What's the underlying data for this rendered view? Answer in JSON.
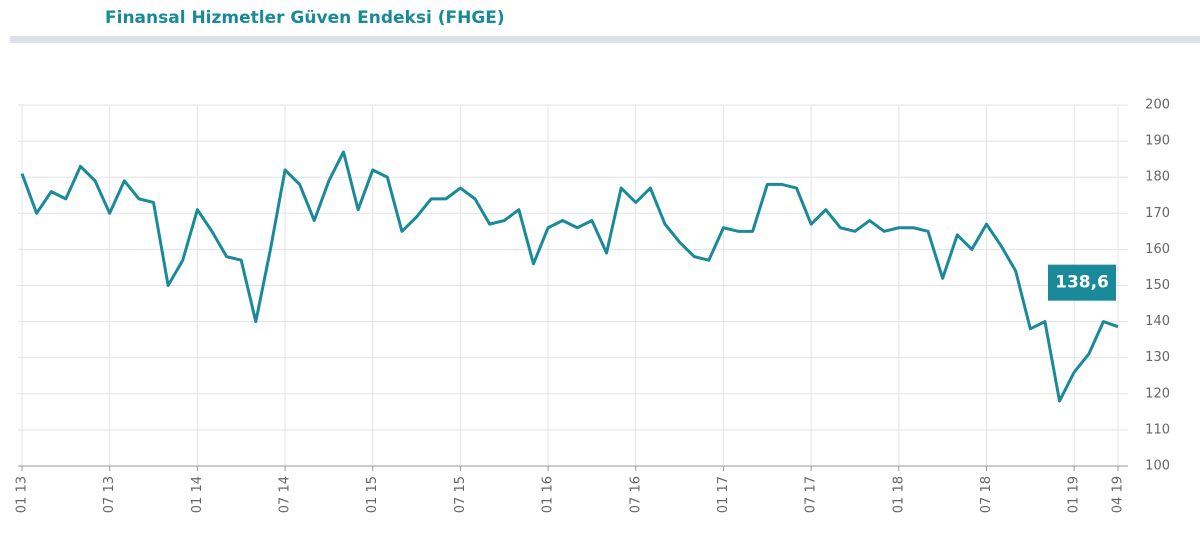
{
  "chart_data": {
    "type": "line",
    "title": "Finansal Hizmetler Güven Endeksi (FHGE)",
    "categories": [
      "01 13",
      null,
      null,
      null,
      null,
      null,
      "07 13",
      null,
      null,
      null,
      null,
      null,
      "01 14",
      null,
      null,
      null,
      null,
      null,
      "07 14",
      null,
      null,
      null,
      null,
      null,
      "01 15",
      null,
      null,
      null,
      null,
      null,
      "07 15",
      null,
      null,
      null,
      null,
      null,
      "01 16",
      null,
      null,
      null,
      null,
      null,
      "07 16",
      null,
      null,
      null,
      null,
      null,
      "01 17",
      null,
      null,
      null,
      null,
      null,
      "07 17",
      null,
      null,
      null,
      null,
      null,
      "01 18",
      null,
      null,
      null,
      null,
      null,
      "07 18",
      null,
      null,
      null,
      null,
      null,
      "01 19",
      null,
      null,
      "04 19"
    ],
    "series": [
      {
        "color": "#1a8a9a",
        "values": [
          181,
          170,
          176,
          174,
          183,
          179,
          170,
          179,
          174,
          173,
          150,
          157,
          171,
          165,
          158,
          157,
          140,
          160,
          182,
          178,
          168,
          179,
          187,
          171,
          182,
          180,
          165,
          169,
          174,
          174,
          177,
          174,
          167,
          168,
          171,
          156,
          166,
          168,
          166,
          168,
          159,
          177,
          173,
          177,
          167,
          162,
          158,
          157,
          166,
          165,
          165,
          178,
          178,
          177,
          167,
          171,
          166,
          165,
          168,
          165,
          166,
          166,
          165,
          152,
          164,
          160,
          167,
          161,
          154,
          138,
          140,
          118,
          126,
          131,
          140,
          138.6
        ],
        "value_labels": [
          null,
          null,
          null,
          null,
          null,
          null,
          null,
          null,
          null,
          null,
          null,
          null,
          null,
          null,
          null,
          null,
          null,
          null,
          null,
          null,
          null,
          null,
          null,
          null,
          null,
          null,
          null,
          null,
          null,
          null,
          null,
          null,
          null,
          null,
          null,
          null,
          null,
          null,
          null,
          null,
          null,
          null,
          null,
          null,
          null,
          null,
          null,
          null,
          null,
          null,
          null,
          null,
          null,
          null,
          null,
          null,
          null,
          null,
          null,
          null,
          null,
          null,
          null,
          null,
          null,
          null,
          null,
          null,
          null,
          null,
          null,
          null,
          null,
          null,
          null,
          "138,6"
        ]
      }
    ],
    "ylim": [
      100,
      200
    ],
    "yticks": [
      100,
      110,
      120,
      130,
      140,
      150,
      160,
      170,
      180,
      190,
      200
    ],
    "grid": true
  }
}
